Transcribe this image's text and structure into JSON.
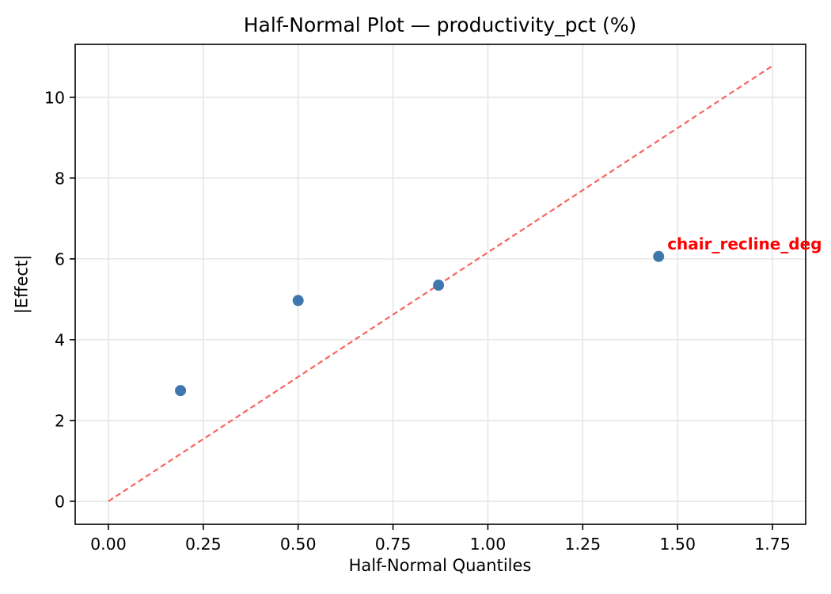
{
  "chart_data": {
    "type": "scatter",
    "title": "Half-Normal Plot — productivity_pct (%)",
    "xlabel": "Half-Normal Quantiles",
    "ylabel": "|Effect|",
    "xlim": [
      -0.0875,
      1.8375
    ],
    "ylim": [
      -0.57,
      11.31
    ],
    "xticks": [
      0,
      0.25,
      0.5,
      0.75,
      1.0,
      1.25,
      1.5,
      1.75
    ],
    "xtick_labels": [
      "0.00",
      "0.25",
      "0.50",
      "0.75",
      "1.00",
      "1.25",
      "1.50",
      "1.75"
    ],
    "yticks": [
      0,
      2,
      4,
      6,
      8,
      10
    ],
    "ytick_labels": [
      "0",
      "2",
      "4",
      "6",
      "8",
      "10"
    ],
    "grid": true,
    "points": [
      {
        "x": 0.19,
        "y": 2.74
      },
      {
        "x": 0.5,
        "y": 4.97
      },
      {
        "x": 0.87,
        "y": 5.35
      },
      {
        "x": 1.45,
        "y": 6.06
      }
    ],
    "reference_line": {
      "style": "dashed",
      "from": {
        "x": 0,
        "y": 0
      },
      "to": {
        "x": 1.75,
        "y": 10.78
      }
    },
    "annotation": {
      "text": "chair_recline_deg",
      "x": 1.45,
      "y": 6.06
    },
    "colors": {
      "point": "#3f77ad",
      "reference_line": "#f9645d",
      "annotation": "#ff0000",
      "grid": "#e6e6e6",
      "axis": "#000000"
    }
  }
}
